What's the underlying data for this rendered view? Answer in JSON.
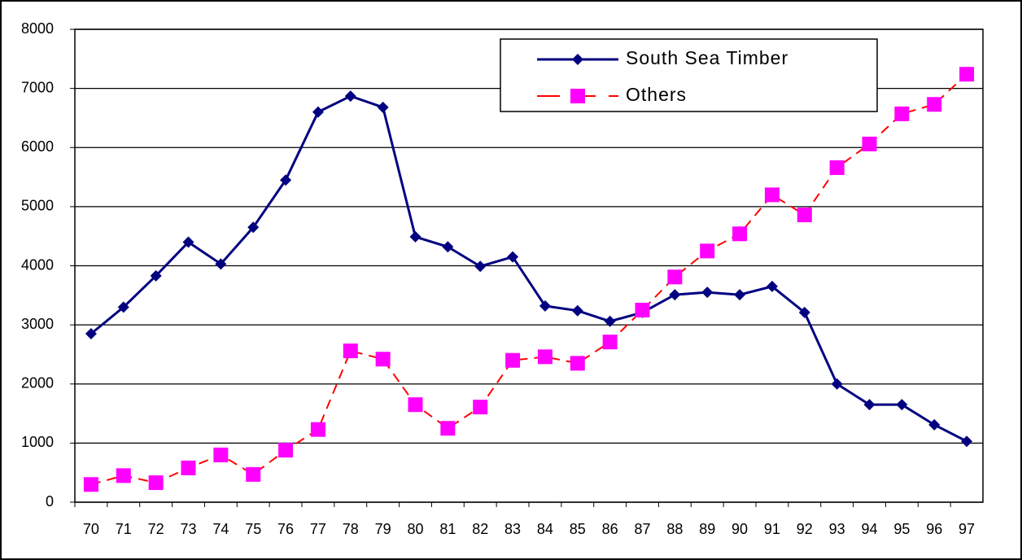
{
  "chart_data": {
    "type": "line",
    "categories": [
      "70",
      "71",
      "72",
      "73",
      "74",
      "75",
      "76",
      "77",
      "78",
      "79",
      "80",
      "81",
      "82",
      "83",
      "84",
      "85",
      "86",
      "87",
      "88",
      "89",
      "90",
      "91",
      "92",
      "93",
      "94",
      "95",
      "96",
      "97"
    ],
    "series": [
      {
        "name": "South Sea Timber",
        "color": "#000080",
        "marker_color": "#000080",
        "marker": "diamond",
        "line_style": "solid",
        "values": [
          2850,
          3300,
          3830,
          4400,
          4030,
          4650,
          5450,
          6600,
          6870,
          6680,
          4490,
          4320,
          3990,
          4150,
          3320,
          3240,
          3060,
          3210,
          3510,
          3550,
          3510,
          3650,
          3210,
          2000,
          1650,
          1650,
          1310,
          1030
        ]
      },
      {
        "name": "Others",
        "color": "#ff0000",
        "marker_color": "#ff00ff",
        "marker": "square",
        "line_style": "dashed",
        "values": [
          300,
          450,
          330,
          580,
          800,
          470,
          880,
          1230,
          2560,
          2420,
          1650,
          1250,
          1610,
          2400,
          2460,
          2350,
          2710,
          3250,
          3810,
          4250,
          4540,
          5200,
          4860,
          5660,
          6060,
          6570,
          6730,
          7240
        ]
      }
    ],
    "ylim": [
      0,
      8000
    ],
    "yticks": [
      0,
      1000,
      2000,
      3000,
      4000,
      5000,
      6000,
      7000,
      8000
    ],
    "grid": true,
    "legend": "top right"
  }
}
